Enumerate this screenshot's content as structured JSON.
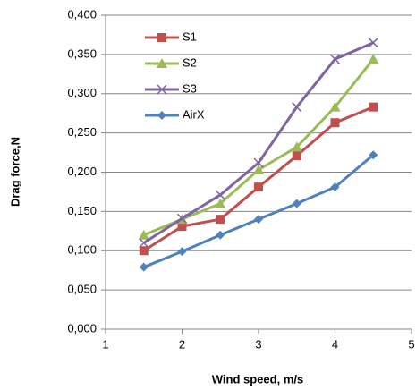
{
  "chart_data": {
    "type": "line",
    "x_label": "Wind speed, m/s",
    "y_label": "Drag force,N",
    "x": [
      1.5,
      2,
      2.5,
      3,
      3.5,
      4,
      4.5
    ],
    "series": [
      {
        "name": "S1",
        "color": "#c0504d",
        "marker": "square",
        "values": [
          0.1,
          0.131,
          0.14,
          0.181,
          0.221,
          0.263,
          0.283
        ]
      },
      {
        "name": "S2",
        "color": "#9bbb59",
        "marker": "triangle",
        "values": [
          0.12,
          0.14,
          0.16,
          0.203,
          0.232,
          0.283,
          0.344
        ]
      },
      {
        "name": "S3",
        "color": "#8064a2",
        "marker": "x",
        "values": [
          0.11,
          0.141,
          0.171,
          0.212,
          0.283,
          0.344,
          0.365
        ]
      },
      {
        "name": "AirX",
        "color": "#4f81bd",
        "marker": "diamond",
        "values": [
          0.079,
          0.099,
          0.12,
          0.14,
          0.16,
          0.181,
          0.222
        ]
      }
    ],
    "xlim": [
      1,
      5
    ],
    "xticks": [
      1,
      2,
      3,
      4,
      5
    ],
    "ylim": [
      0,
      0.4
    ],
    "yticks": [
      {
        "value": 0,
        "label": "0,000"
      },
      {
        "value": 0.05,
        "label": "0,050"
      },
      {
        "value": 0.1,
        "label": "0,100"
      },
      {
        "value": 0.15,
        "label": "0,150"
      },
      {
        "value": 0.2,
        "label": "0,200"
      },
      {
        "value": 0.25,
        "label": "0,250"
      },
      {
        "value": 0.3,
        "label": "0,300"
      },
      {
        "value": 0.35,
        "label": "0,350"
      },
      {
        "value": 0.4,
        "label": "0,400"
      }
    ],
    "grid": true,
    "legend": "upper left"
  }
}
